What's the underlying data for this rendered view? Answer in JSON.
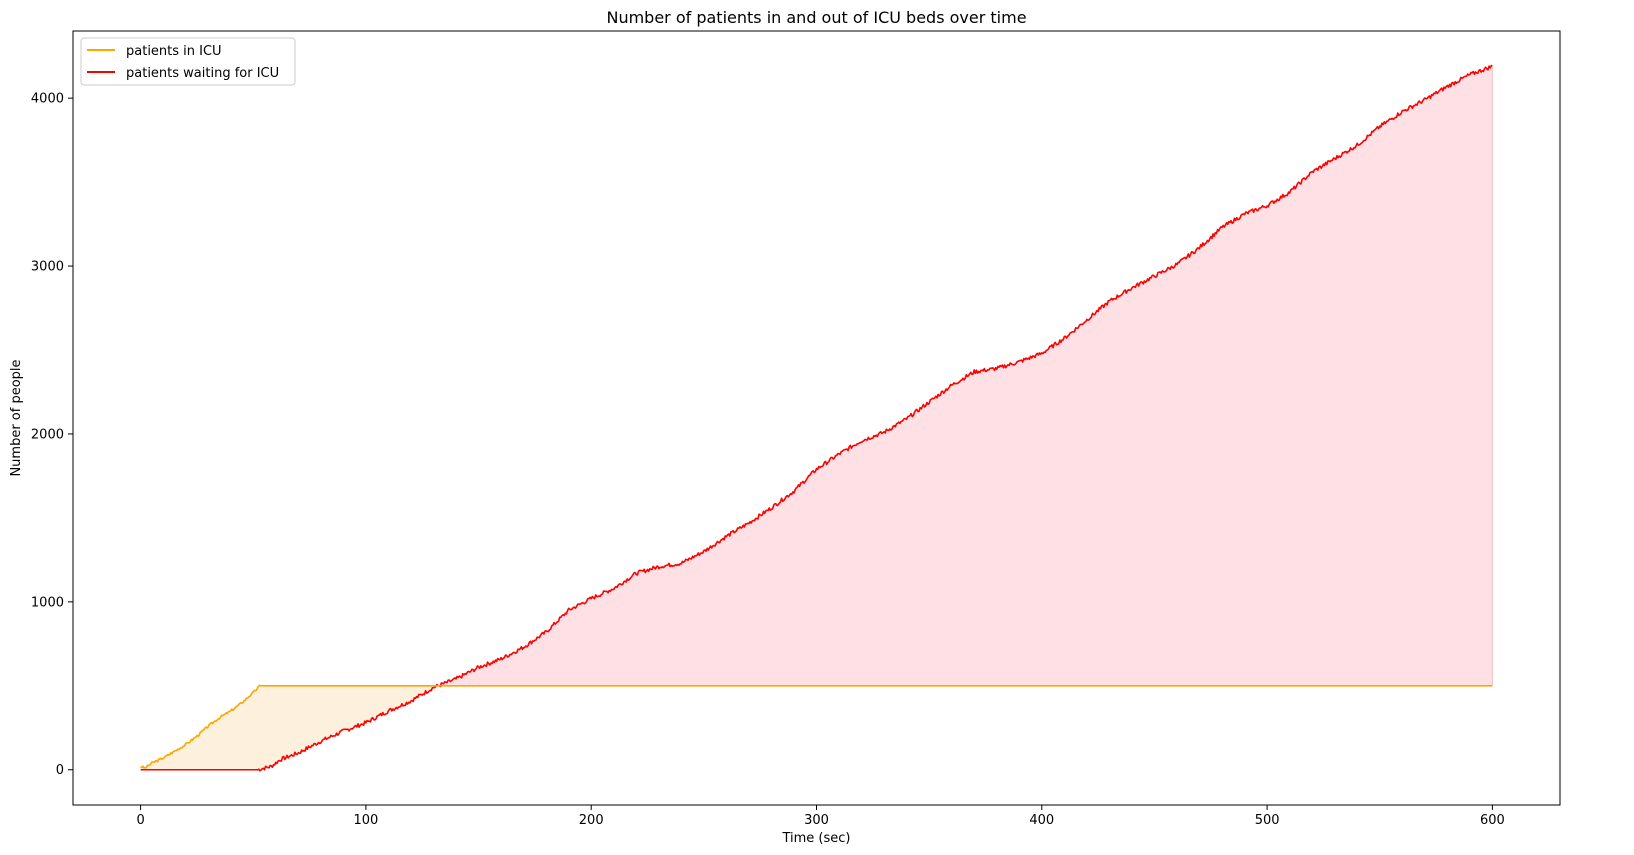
{
  "chart_data": {
    "type": "line",
    "title": "Number of patients in and out of ICU beds over time",
    "xlabel": "Time (sec)",
    "ylabel": "Number of people",
    "xlim": [
      -30,
      630
    ],
    "ylim": [
      -210,
      4400
    ],
    "xticks": [
      0,
      100,
      200,
      300,
      400,
      500,
      600
    ],
    "yticks": [
      0,
      1000,
      2000,
      3000,
      4000
    ],
    "grid": false,
    "legend": "top-left",
    "series": [
      {
        "name": "patients in ICU",
        "color": "#ffa500",
        "fill": "#fdf0dd",
        "points": [
          [
            0,
            20
          ],
          [
            2,
            10
          ],
          [
            5,
            40
          ],
          [
            10,
            70
          ],
          [
            15,
            110
          ],
          [
            20,
            150
          ],
          [
            25,
            200
          ],
          [
            30,
            260
          ],
          [
            35,
            310
          ],
          [
            40,
            350
          ],
          [
            45,
            400
          ],
          [
            50,
            460
          ],
          [
            53,
            500
          ],
          [
            600,
            500
          ]
        ]
      },
      {
        "name": "patients waiting for ICU",
        "color": "#ff0000",
        "fill": "#ffe0e4",
        "points": [
          [
            0,
            0
          ],
          [
            52,
            0
          ],
          [
            55,
            10
          ],
          [
            58,
            20
          ],
          [
            62,
            60
          ],
          [
            70,
            100
          ],
          [
            80,
            170
          ],
          [
            90,
            230
          ],
          [
            100,
            280
          ],
          [
            110,
            350
          ],
          [
            120,
            410
          ],
          [
            130,
            490
          ],
          [
            140,
            540
          ],
          [
            150,
            610
          ],
          [
            160,
            660
          ],
          [
            170,
            730
          ],
          [
            180,
            820
          ],
          [
            190,
            950
          ],
          [
            200,
            1020
          ],
          [
            210,
            1080
          ],
          [
            220,
            1170
          ],
          [
            230,
            1210
          ],
          [
            240,
            1230
          ],
          [
            250,
            1300
          ],
          [
            260,
            1390
          ],
          [
            270,
            1470
          ],
          [
            280,
            1560
          ],
          [
            290,
            1660
          ],
          [
            300,
            1790
          ],
          [
            310,
            1880
          ],
          [
            320,
            1960
          ],
          [
            330,
            2010
          ],
          [
            340,
            2090
          ],
          [
            350,
            2190
          ],
          [
            360,
            2290
          ],
          [
            370,
            2370
          ],
          [
            380,
            2390
          ],
          [
            390,
            2430
          ],
          [
            400,
            2480
          ],
          [
            410,
            2570
          ],
          [
            420,
            2680
          ],
          [
            430,
            2790
          ],
          [
            440,
            2870
          ],
          [
            450,
            2940
          ],
          [
            460,
            3010
          ],
          [
            470,
            3110
          ],
          [
            480,
            3230
          ],
          [
            490,
            3310
          ],
          [
            500,
            3360
          ],
          [
            510,
            3440
          ],
          [
            520,
            3560
          ],
          [
            530,
            3640
          ],
          [
            540,
            3720
          ],
          [
            550,
            3830
          ],
          [
            560,
            3920
          ],
          [
            570,
            3990
          ],
          [
            580,
            4070
          ],
          [
            590,
            4140
          ],
          [
            600,
            4190
          ]
        ]
      }
    ]
  }
}
